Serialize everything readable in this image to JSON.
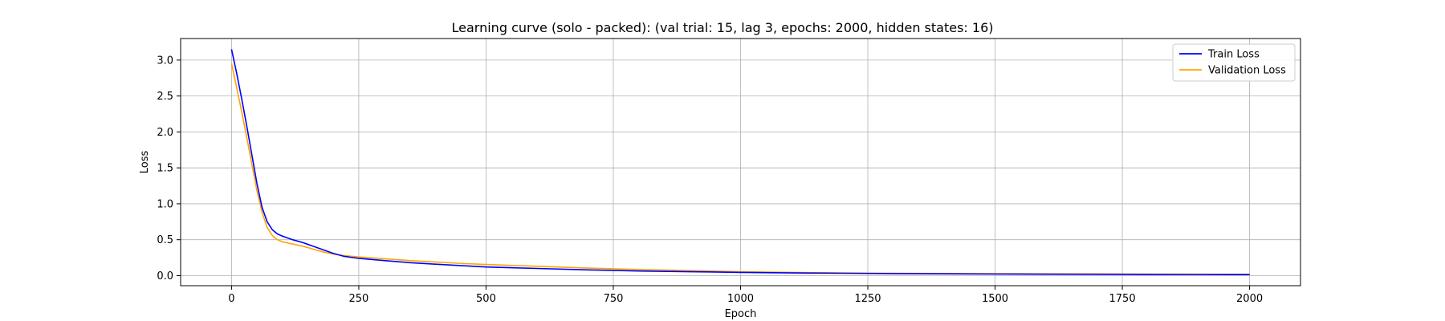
{
  "chart_data": {
    "type": "line",
    "title": "Learning curve (solo - packed): (val trial: 15, lag 3, epochs: 2000, hidden states: 16)",
    "xlabel": "Epoch",
    "ylabel": "Loss",
    "xlim": [
      -100,
      2100
    ],
    "ylim": [
      -0.14,
      3.3
    ],
    "xticks": [
      0,
      250,
      500,
      750,
      1000,
      1250,
      1500,
      1750,
      2000
    ],
    "yticks": [
      0.0,
      0.5,
      1.0,
      1.5,
      2.0,
      2.5,
      3.0
    ],
    "xtick_labels": [
      "0",
      "250",
      "500",
      "750",
      "1000",
      "1250",
      "1500",
      "1750",
      "2000"
    ],
    "ytick_labels": [
      "0.0",
      "0.5",
      "1.0",
      "1.5",
      "2.0",
      "2.5",
      "3.0"
    ],
    "grid": true,
    "legend_position": "top-right",
    "series": [
      {
        "name": "Train Loss",
        "color": "#0000ff",
        "x": [
          0,
          10,
          20,
          30,
          40,
          50,
          60,
          70,
          80,
          90,
          100,
          120,
          140,
          160,
          180,
          200,
          220,
          250,
          300,
          350,
          400,
          450,
          500,
          600,
          700,
          800,
          900,
          1000,
          1100,
          1200,
          1300,
          1400,
          1500,
          1600,
          1700,
          1800,
          1900,
          2000
        ],
        "y": [
          3.15,
          2.82,
          2.46,
          2.08,
          1.68,
          1.28,
          0.95,
          0.75,
          0.64,
          0.58,
          0.55,
          0.5,
          0.46,
          0.41,
          0.36,
          0.31,
          0.27,
          0.24,
          0.21,
          0.18,
          0.16,
          0.14,
          0.12,
          0.1,
          0.08,
          0.065,
          0.055,
          0.045,
          0.038,
          0.033,
          0.028,
          0.025,
          0.022,
          0.02,
          0.018,
          0.016,
          0.015,
          0.014
        ]
      },
      {
        "name": "Validation Loss",
        "color": "#ffa500",
        "x": [
          0,
          10,
          20,
          30,
          40,
          50,
          60,
          70,
          80,
          90,
          100,
          120,
          140,
          160,
          180,
          200,
          220,
          250,
          300,
          350,
          400,
          450,
          500,
          600,
          700,
          800,
          900,
          1000,
          1100,
          1200,
          1300,
          1400,
          1500,
          1600,
          1700,
          1800,
          1900,
          2000
        ],
        "y": [
          2.95,
          2.62,
          2.28,
          1.92,
          1.55,
          1.18,
          0.88,
          0.67,
          0.56,
          0.5,
          0.47,
          0.44,
          0.41,
          0.37,
          0.33,
          0.3,
          0.28,
          0.26,
          0.235,
          0.21,
          0.19,
          0.17,
          0.155,
          0.13,
          0.105,
          0.085,
          0.07,
          0.055,
          0.045,
          0.038,
          0.033,
          0.03,
          0.028,
          0.026,
          0.024,
          0.022,
          0.02,
          0.018
        ]
      }
    ]
  }
}
